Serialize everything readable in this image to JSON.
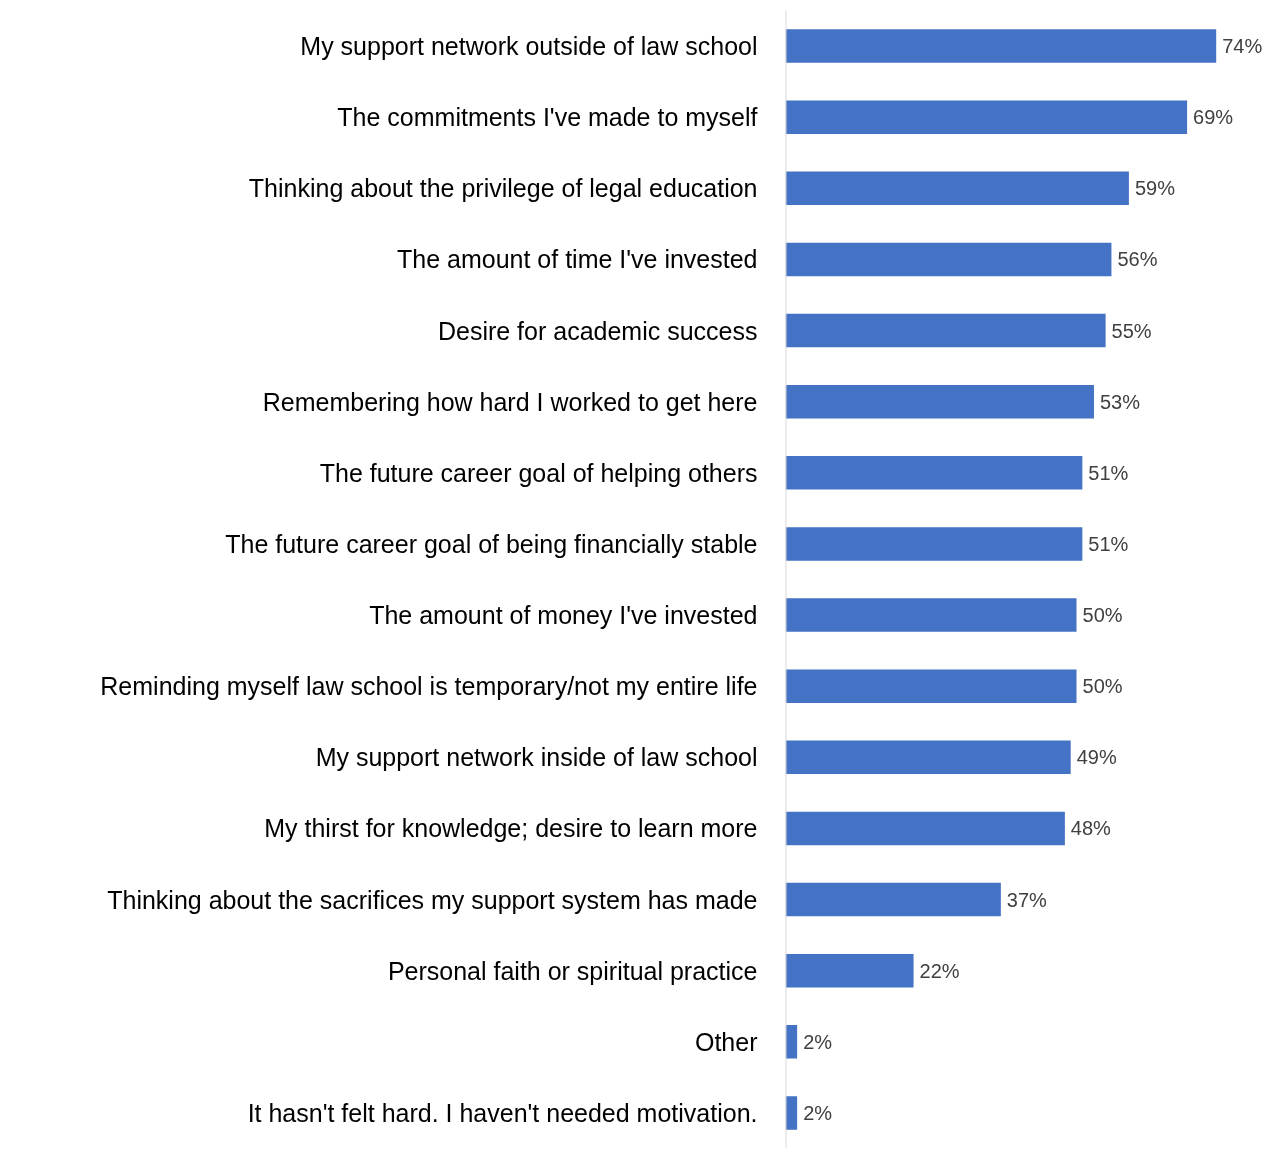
{
  "chart_data": {
    "type": "bar",
    "orientation": "horizontal",
    "categories": [
      "My support network outside of law school",
      "The commitments I've made to myself",
      "Thinking about the privilege of legal education",
      "The amount of time I've invested",
      "Desire for academic success",
      "Remembering how hard I worked to get here",
      "The future career goal of helping others",
      "The future career goal of being financially stable",
      "The amount of money I've invested",
      "Reminding myself law school is temporary/not my entire life",
      "My support network inside of law school",
      "My thirst for knowledge; desire to learn more",
      "Thinking about the sacrifices my support system has made",
      "Personal faith or spiritual practice",
      "Other",
      "It hasn't felt hard. I haven't needed motivation."
    ],
    "values": [
      74,
      69,
      59,
      56,
      55,
      53,
      51,
      51,
      50,
      50,
      49,
      48,
      37,
      22,
      2,
      2
    ],
    "value_labels": [
      "74%",
      "69%",
      "59%",
      "56%",
      "55%",
      "53%",
      "51%",
      "51%",
      "50%",
      "50%",
      "49%",
      "48%",
      "37%",
      "22%",
      "2%",
      "2%"
    ],
    "color": "#4472c4",
    "grid": false,
    "tick_labels": "y"
  }
}
